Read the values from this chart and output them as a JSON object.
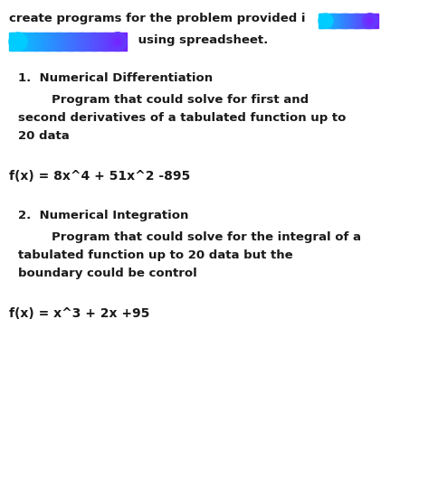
{
  "background_color": "#ffffff",
  "text_color": "#1a1a1a",
  "font_size_title": 9.5,
  "font_size_body": 9.5,
  "font_size_formula": 10.0,
  "pill_color_start": "#00ccff",
  "pill_color_end": "#7722ff",
  "line1_text": "create programs for the problem provided i",
  "line2_text": " using spreadsheet.",
  "s1_title": "1.  Numerical Differentiation",
  "s1_b1": "        Program that could solve for first and",
  "s1_b2": "second derivatives of a tabulated function up to",
  "s1_b3": "20 data",
  "formula1": "f(x) = 8x^4 + 51x^2 -895",
  "s2_title": "2.  Numerical Integration",
  "s2_b1": "        Program that could solve for the integral of a",
  "s2_b2": "tabulated function up to 20 data but the",
  "s2_b3": "boundary could be control",
  "formula2": "f(x) = x^3 + 2x +95"
}
